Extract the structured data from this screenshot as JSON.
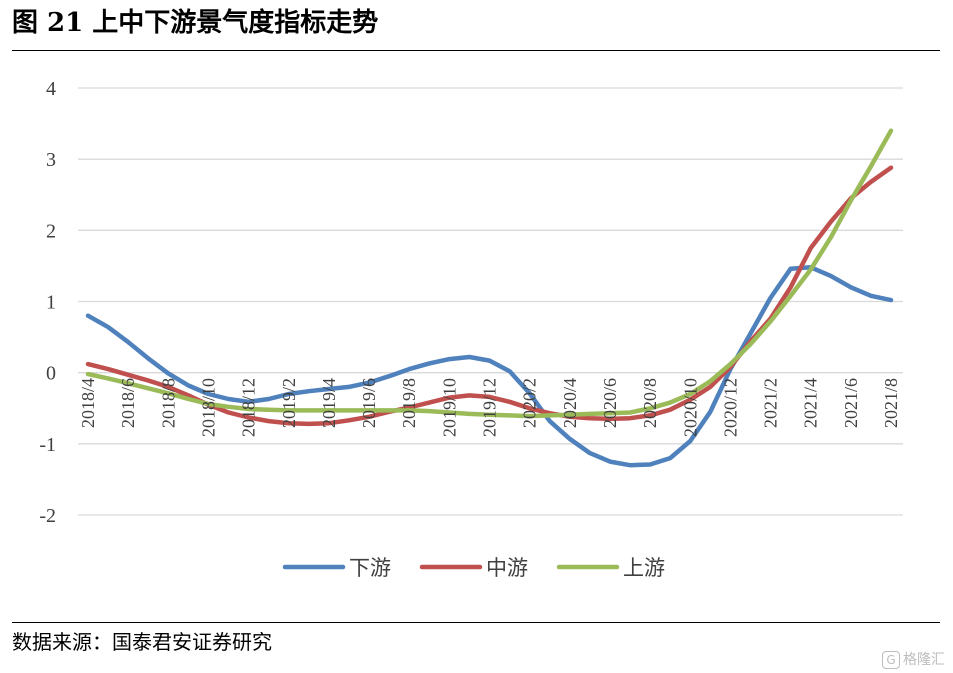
{
  "title": "图 21  上中下游景气度指标走势",
  "source": "数据来源：国泰君安证券研究",
  "watermark": "格隆汇",
  "chart_data": {
    "type": "line",
    "categories": [
      "2018/4",
      "2018/5",
      "2018/6",
      "2018/7",
      "2018/8",
      "2018/9",
      "2018/10",
      "2018/11",
      "2018/12",
      "2019/1",
      "2019/2",
      "2019/3",
      "2019/4",
      "2019/5",
      "2019/6",
      "2019/7",
      "2019/8",
      "2019/9",
      "2019/10",
      "2019/11",
      "2019/12",
      "2020/1",
      "2020/2",
      "2020/3",
      "2020/4",
      "2020/5",
      "2020/6",
      "2020/7",
      "2020/8",
      "2020/9",
      "2020/10",
      "2020/11",
      "2020/12",
      "2021/1",
      "2021/2",
      "2021/3",
      "2021/4",
      "2021/5",
      "2021/6",
      "2021/7",
      "2021/8"
    ],
    "tick_labels": [
      "2018/4",
      "2018/6",
      "2018/8",
      "2018/10",
      "2018/12",
      "2019/2",
      "2019/4",
      "2019/6",
      "2019/8",
      "2019/10",
      "2019/12",
      "2020/2",
      "2020/4",
      "2020/6",
      "2020/8",
      "2020/10",
      "2020/12",
      "2021/2",
      "2021/4",
      "2021/6",
      "2021/8"
    ],
    "ylim": [
      -2,
      4
    ],
    "yticks": [
      -2,
      -1,
      0,
      1,
      2,
      3,
      4
    ],
    "grid": true,
    "legend_position": "bottom",
    "series": [
      {
        "name": "下游",
        "color": "#4f81bd",
        "values": [
          0.8,
          0.64,
          0.43,
          0.2,
          -0.01,
          -0.18,
          -0.3,
          -0.37,
          -0.41,
          -0.37,
          -0.3,
          -0.26,
          -0.23,
          -0.2,
          -0.14,
          -0.05,
          0.05,
          0.13,
          0.19,
          0.22,
          0.17,
          0.02,
          -0.29,
          -0.68,
          -0.93,
          -1.13,
          -1.25,
          -1.3,
          -1.29,
          -1.2,
          -0.96,
          -0.55,
          0.05,
          0.55,
          1.05,
          1.46,
          1.48,
          1.36,
          1.2,
          1.08,
          1.02
        ]
      },
      {
        "name": "中游",
        "color": "#c0504d",
        "values": [
          0.12,
          0.05,
          -0.03,
          -0.11,
          -0.2,
          -0.32,
          -0.45,
          -0.56,
          -0.63,
          -0.68,
          -0.71,
          -0.72,
          -0.71,
          -0.67,
          -0.62,
          -0.55,
          -0.49,
          -0.42,
          -0.35,
          -0.32,
          -0.34,
          -0.41,
          -0.5,
          -0.57,
          -0.62,
          -0.64,
          -0.65,
          -0.64,
          -0.6,
          -0.52,
          -0.38,
          -0.2,
          0.08,
          0.44,
          0.76,
          1.2,
          1.75,
          2.12,
          2.45,
          2.68,
          2.88
        ]
      },
      {
        "name": "上游",
        "color": "#9bbb59",
        "values": [
          -0.02,
          -0.08,
          -0.15,
          -0.22,
          -0.29,
          -0.37,
          -0.44,
          -0.48,
          -0.51,
          -0.52,
          -0.53,
          -0.53,
          -0.53,
          -0.53,
          -0.53,
          -0.53,
          -0.53,
          -0.54,
          -0.56,
          -0.58,
          -0.59,
          -0.6,
          -0.61,
          -0.6,
          -0.59,
          -0.58,
          -0.57,
          -0.56,
          -0.5,
          -0.42,
          -0.3,
          -0.12,
          0.12,
          0.4,
          0.72,
          1.08,
          1.45,
          1.9,
          2.42,
          2.9,
          3.4
        ]
      }
    ]
  }
}
